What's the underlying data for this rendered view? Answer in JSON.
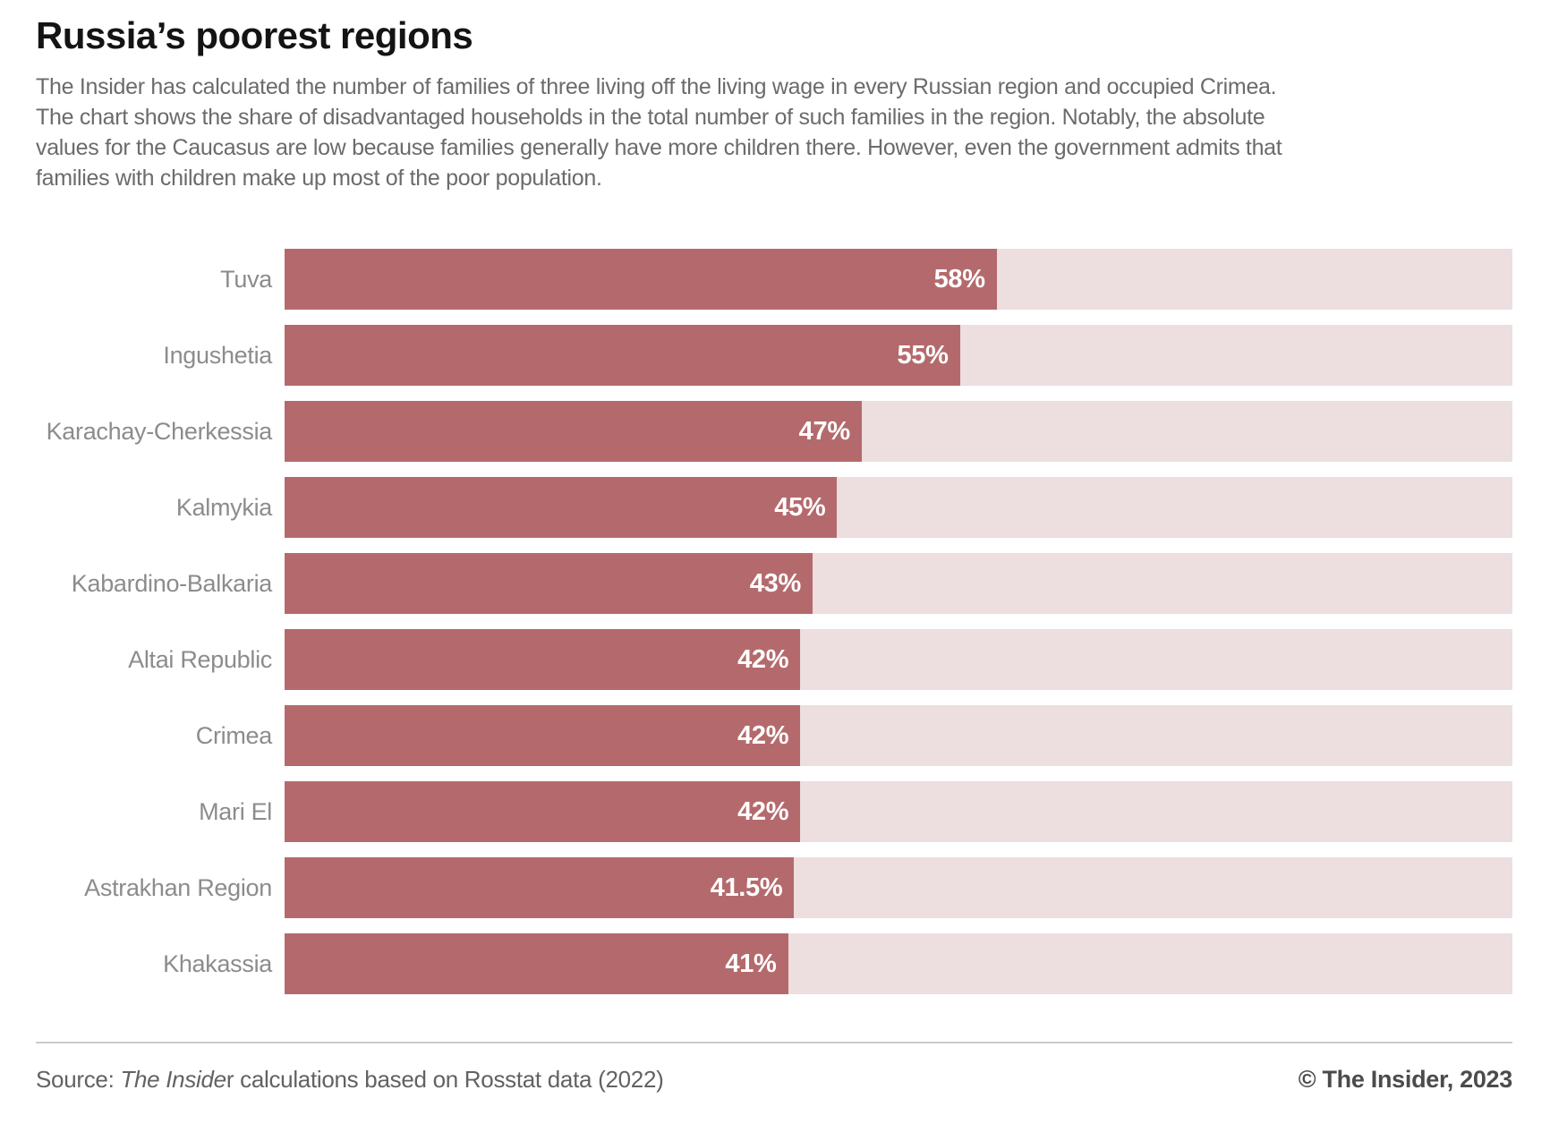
{
  "header": {
    "title": "Russia’s poorest regions",
    "subtitle_lines": [
      "The Insider has calculated the number of families of three living off the living wage in every Russian region and occupied Crimea.",
      "The chart shows the share of disadvantaged households in the total number of such families in the region. Notably, the absolute",
      "values for the Caucasus are low because families generally have more children there. However, even the government admits that",
      "families with children make up most of the poor population."
    ]
  },
  "chart_data": {
    "type": "bar",
    "orientation": "horizontal",
    "title": "Russia’s poorest regions",
    "categories": [
      "Tuva",
      "Ingushetia",
      "Karachay-Cherkessia",
      "Kalmykia",
      "Kabardino-Balkaria",
      "Altai Republic",
      "Crimea",
      "Mari El",
      "Astrakhan Region",
      "Khakassia"
    ],
    "values": [
      58,
      55,
      47,
      45,
      43,
      42,
      42,
      42,
      41.5,
      41
    ],
    "value_labels": [
      "58%",
      "55%",
      "47%",
      "45%",
      "43%",
      "42%",
      "42%",
      "42%",
      "41.5%",
      "41%"
    ],
    "xlabel": "",
    "ylabel": "",
    "xlim": [
      0,
      100
    ],
    "grid": false,
    "legend": false,
    "bar_color": "#b46a6c",
    "track_color": "#eddedf"
  },
  "footer": {
    "source_prefix": "Source: ",
    "source_italic": "The Inside",
    "source_suffix": "r calculations based on Rosstat data (2022)",
    "copyright": "© The Insider, 2023"
  }
}
